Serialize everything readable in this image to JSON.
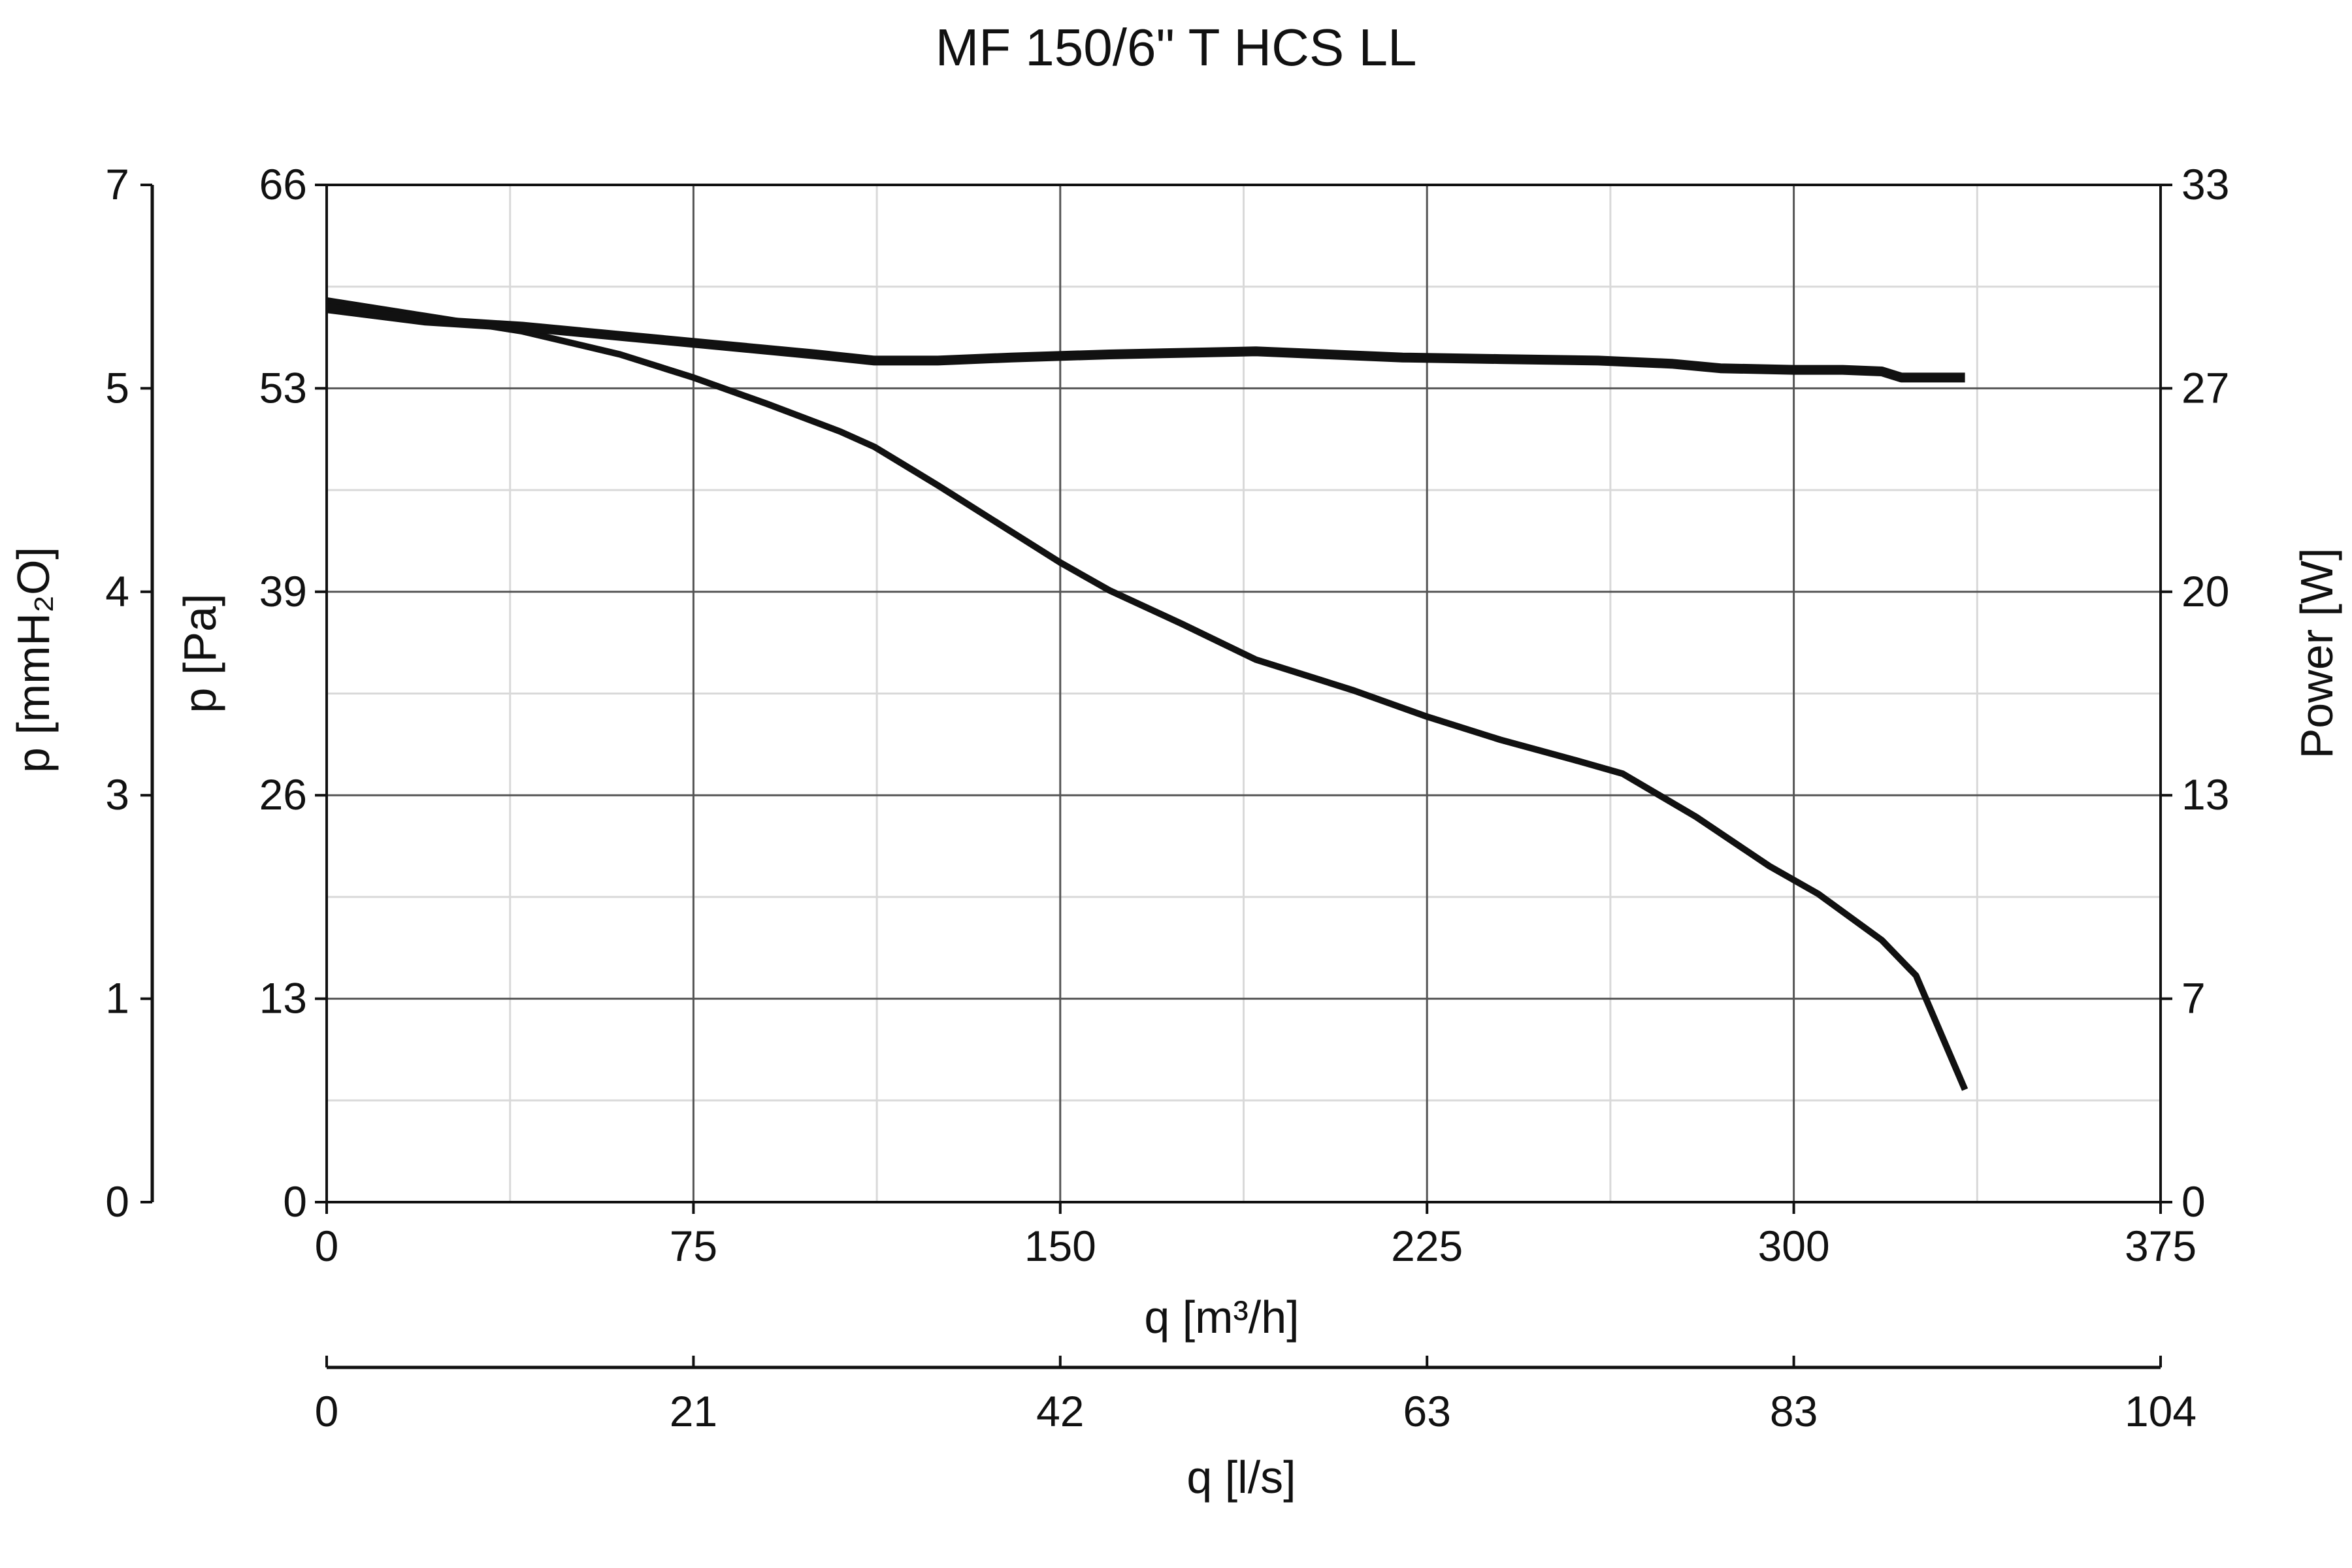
{
  "chart_data": {
    "type": "line",
    "title": "MF 150/6\" T HCS LL",
    "xlabel": "q [m³/h]",
    "x2label": "q [l/s]",
    "ylabel": "p [Pa]",
    "y_mmh2o_label": "p [mmH₂O]",
    "y2label": "Power [W]",
    "xlim": [
      0,
      375
    ],
    "ylim": [
      0,
      66
    ],
    "y2lim": [
      0,
      33
    ],
    "x_ticks": [
      "0",
      "75",
      "150",
      "225",
      "300",
      "375"
    ],
    "x2_ticks": [
      "0",
      "21",
      "42",
      "63",
      "83",
      "104"
    ],
    "y_ticks": [
      "0",
      "13",
      "26",
      "39",
      "53",
      "66"
    ],
    "y_mmh2o_ticks": [
      "0",
      "1",
      "3",
      "4",
      "5",
      "7"
    ],
    "y2_ticks": [
      "0",
      "7",
      "13",
      "20",
      "27",
      "33"
    ],
    "grid": true,
    "series": [
      {
        "axis": "left",
        "x": [
          0,
          20,
          40,
          60,
          75,
          90,
          105,
          112,
          125,
          140,
          150,
          160,
          175,
          190,
          210,
          225,
          240,
          255,
          265,
          280,
          295,
          305,
          318,
          325,
          335
        ],
        "y": [
          58.5,
          57.5,
          56.5,
          55,
          53.5,
          51.8,
          50,
          49,
          46.5,
          43.5,
          41.5,
          39.7,
          37.5,
          35.2,
          33.2,
          31.5,
          30,
          28.7,
          27.8,
          25,
          21.8,
          20,
          17,
          14.7,
          7.3
        ],
        "color": "#111111"
      },
      {
        "axis": "right",
        "x": [
          0,
          20,
          40,
          60,
          80,
          100,
          112,
          125,
          140,
          160,
          175,
          190,
          205,
          220,
          240,
          260,
          275,
          285,
          300,
          310,
          318,
          322,
          335
        ],
        "y": [
          29,
          28.6,
          28.4,
          28.1,
          27.8,
          27.5,
          27.3,
          27.3,
          27.4,
          27.5,
          27.55,
          27.6,
          27.5,
          27.4,
          27.35,
          27.3,
          27.2,
          27.05,
          27,
          27,
          26.95,
          26.75,
          26.75
        ],
        "color": "#111111"
      }
    ]
  }
}
